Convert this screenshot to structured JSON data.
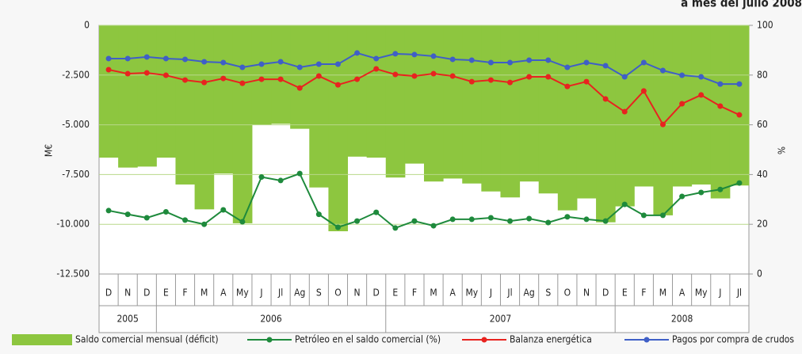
{
  "chart_data": {
    "type": "combo",
    "title": "a mes del julio 2008",
    "y_label": "M€",
    "y2_label": "%",
    "categories": [
      "D",
      "N",
      "D",
      "E",
      "F",
      "M",
      "A",
      "My",
      "J",
      "Jl",
      "Ag",
      "S",
      "O",
      "N",
      "D",
      "E",
      "F",
      "M",
      "A",
      "My",
      "J",
      "Jl",
      "Ag",
      "S",
      "O",
      "N",
      "D",
      "E",
      "F",
      "M",
      "A",
      "My",
      "J",
      "Jl"
    ],
    "years": [
      "2005",
      "2006",
      "2007",
      "2008"
    ],
    "ylim": [
      -12500,
      0
    ],
    "yticks": [
      {
        "value": 0,
        "label": "0"
      },
      {
        "value": -2500,
        "label": "-2.500"
      },
      {
        "value": -5000,
        "label": "-5.000"
      },
      {
        "value": -7500,
        "label": "-7.500"
      },
      {
        "value": -10000,
        "label": "-10.000"
      },
      {
        "value": -12500,
        "label": "-12.500"
      }
    ],
    "y2lim": [
      0,
      100
    ],
    "y2ticks": [
      0,
      20,
      40,
      60,
      80,
      100
    ],
    "grid": true,
    "series": [
      {
        "name": "Saldo comercial mensual (déficit)",
        "type": "bar",
        "color": "#8dc63f",
        "values": [
          -6650,
          -7150,
          -7100,
          -6650,
          -8000,
          -9250,
          -7450,
          -9950,
          -5000,
          -4950,
          -5200,
          -8150,
          -10350,
          -6600,
          -6650,
          -7650,
          -6950,
          -7850,
          -7700,
          -7950,
          -8350,
          -8650,
          -7850,
          -8450,
          -9300,
          -8700,
          -9900,
          -9100,
          -8100,
          -9550,
          -8100,
          -8000,
          -8700,
          -8050
        ]
      },
      {
        "name": "Petróleo en el saldo comercial (%)",
        "type": "line",
        "axis": "y2",
        "color": "#1e8a3c",
        "values": [
          25.5,
          24,
          22.6,
          25,
          21.7,
          20,
          25.8,
          21,
          39,
          37.6,
          40.4,
          24,
          18.8,
          21.3,
          24.8,
          18.5,
          21.3,
          19.4,
          22,
          22,
          22.6,
          21.3,
          22.3,
          20.7,
          23,
          22,
          21.3,
          28,
          23.6,
          23.6,
          31.2,
          32.8,
          34,
          36.6
        ]
      },
      {
        "name": "Balanza energética",
        "type": "line",
        "color": "#e8231f",
        "values": [
          -2230,
          -2430,
          -2390,
          -2510,
          -2750,
          -2870,
          -2670,
          -2910,
          -2710,
          -2710,
          -3150,
          -2550,
          -2990,
          -2710,
          -2190,
          -2470,
          -2550,
          -2430,
          -2550,
          -2830,
          -2750,
          -2870,
          -2590,
          -2590,
          -3070,
          -2830,
          -3700,
          -4340,
          -3300,
          -4980,
          -3940,
          -3500,
          -4060,
          -4500
        ]
      },
      {
        "name": "Pagos por compra de crudos",
        "type": "line",
        "color": "#3f5fc7",
        "values": [
          -1670,
          -1670,
          -1590,
          -1670,
          -1710,
          -1830,
          -1870,
          -2110,
          -1950,
          -1830,
          -2110,
          -1950,
          -1950,
          -1390,
          -1670,
          -1430,
          -1470,
          -1550,
          -1710,
          -1750,
          -1870,
          -1870,
          -1750,
          -1750,
          -2110,
          -1870,
          -2030,
          -2590,
          -1870,
          -2270,
          -2510,
          -2590,
          -2950,
          -2950
        ]
      }
    ]
  }
}
